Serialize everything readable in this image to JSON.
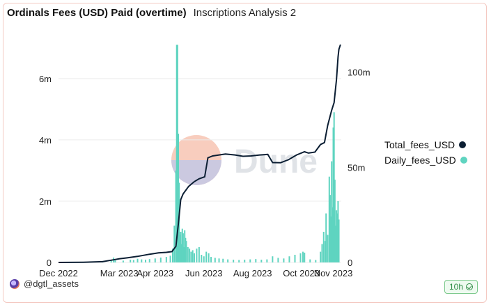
{
  "header": {
    "title": "Ordinals Fees (USD) Paid (overtime)",
    "subtitle": "Inscriptions Analysis 2"
  },
  "watermark": "Dune",
  "footer": {
    "user": "@dgtl_assets",
    "refresh_badge": "10h",
    "avatar_icon": "user-avatar-icon",
    "badge_icon": "check-circle-icon"
  },
  "colors": {
    "total_line": "#0b1e33",
    "daily_bars": "#5fd4c0",
    "watermark_orange": "#f6bca8",
    "watermark_blue": "#c3c8e6"
  },
  "chart_data": {
    "type": "bar+line",
    "x_axis": {
      "type": "date",
      "range": [
        "2022-12-01",
        "2023-11-20"
      ],
      "tick_labels": [
        "Dec 2022",
        "Mar 2023",
        "Apr 2023",
        "Jun 2023",
        "Aug 2023",
        "Oct 2023",
        "Nov 2023"
      ],
      "tick_dates": [
        "2022-12-01",
        "2023-02-15",
        "2023-04-01",
        "2023-06-01",
        "2023-08-01",
        "2023-10-01",
        "2023-11-10"
      ]
    },
    "y_left": {
      "range": [
        0,
        7200000
      ],
      "ticks": [
        0,
        2000000,
        4000000,
        6000000
      ],
      "tick_labels": [
        "0",
        "2m",
        "4m",
        "6m"
      ],
      "series": "Daily_fees_USD"
    },
    "y_right": {
      "range": [
        0,
        116000000
      ],
      "ticks": [
        0,
        50000000,
        100000000
      ],
      "tick_labels": [
        "0",
        "50m",
        "100m"
      ],
      "series": "Total_fees_USD"
    },
    "legend": {
      "placement": "right",
      "entries": [
        "Total_fees_USD",
        "Daily_fees_USD"
      ]
    },
    "grid": "horizontal",
    "series": [
      {
        "name": "Total_fees_USD",
        "kind": "line",
        "axis": "right",
        "points": [
          [
            "2022-12-01",
            0
          ],
          [
            "2023-01-01",
            100000
          ],
          [
            "2023-01-25",
            400000
          ],
          [
            "2023-02-08",
            1400000
          ],
          [
            "2023-02-15",
            1900000
          ],
          [
            "2023-02-25",
            2400000
          ],
          [
            "2023-03-10",
            3200000
          ],
          [
            "2023-03-25",
            4300000
          ],
          [
            "2023-04-05",
            5000000
          ],
          [
            "2023-04-15",
            5300000
          ],
          [
            "2023-04-22",
            5700000
          ],
          [
            "2023-04-27",
            8500000
          ],
          [
            "2023-04-30",
            20000000
          ],
          [
            "2023-05-03",
            33000000
          ],
          [
            "2023-05-06",
            36000000
          ],
          [
            "2023-05-13",
            40000000
          ],
          [
            "2023-05-20",
            42500000
          ],
          [
            "2023-05-26",
            44000000
          ],
          [
            "2023-06-02",
            45000000
          ],
          [
            "2023-06-06",
            55000000
          ],
          [
            "2023-06-12",
            56000000
          ],
          [
            "2023-06-20",
            56500000
          ],
          [
            "2023-06-28",
            57000000
          ],
          [
            "2023-07-10",
            56500000
          ],
          [
            "2023-07-20",
            55800000
          ],
          [
            "2023-07-30",
            56000000
          ],
          [
            "2023-08-10",
            56500000
          ],
          [
            "2023-08-20",
            56800000
          ],
          [
            "2023-08-26",
            52500000
          ],
          [
            "2023-09-05",
            52400000
          ],
          [
            "2023-09-15",
            54000000
          ],
          [
            "2023-09-25",
            56500000
          ],
          [
            "2023-10-05",
            58200000
          ],
          [
            "2023-10-10",
            57500000
          ],
          [
            "2023-10-18",
            58000000
          ],
          [
            "2023-10-25",
            62000000
          ],
          [
            "2023-10-30",
            63000000
          ],
          [
            "2023-11-03",
            72000000
          ],
          [
            "2023-11-08",
            80000000
          ],
          [
            "2023-11-11",
            84000000
          ],
          [
            "2023-11-14",
            96000000
          ],
          [
            "2023-11-16",
            108000000
          ],
          [
            "2023-11-17",
            112000000
          ],
          [
            "2023-11-19",
            114500000
          ]
        ]
      },
      {
        "name": "Daily_fees_USD",
        "kind": "bar",
        "axis": "left",
        "points": [
          [
            "2023-01-25",
            30000
          ],
          [
            "2023-02-05",
            60000
          ],
          [
            "2023-02-08",
            160000
          ],
          [
            "2023-02-10",
            70000
          ],
          [
            "2023-02-20",
            60000
          ],
          [
            "2023-03-01",
            90000
          ],
          [
            "2023-03-05",
            80000
          ],
          [
            "2023-03-10",
            120000
          ],
          [
            "2023-03-15",
            100000
          ],
          [
            "2023-03-20",
            90000
          ],
          [
            "2023-03-25",
            110000
          ],
          [
            "2023-04-01",
            130000
          ],
          [
            "2023-04-08",
            160000
          ],
          [
            "2023-04-15",
            180000
          ],
          [
            "2023-04-20",
            220000
          ],
          [
            "2023-04-23",
            450000
          ],
          [
            "2023-04-25",
            1200000
          ],
          [
            "2023-04-27",
            3000000
          ],
          [
            "2023-04-28",
            7100000
          ],
          [
            "2023-04-29",
            7100000
          ],
          [
            "2023-04-30",
            4200000
          ],
          [
            "2023-05-01",
            2600000
          ],
          [
            "2023-05-02",
            900000
          ],
          [
            "2023-05-03",
            1000000
          ],
          [
            "2023-05-04",
            600000
          ],
          [
            "2023-05-05",
            1100000
          ],
          [
            "2023-05-06",
            950000
          ],
          [
            "2023-05-07",
            500000
          ],
          [
            "2023-05-08",
            1050000
          ],
          [
            "2023-05-09",
            800000
          ],
          [
            "2023-05-10",
            700000
          ],
          [
            "2023-05-12",
            500000
          ],
          [
            "2023-05-14",
            450000
          ],
          [
            "2023-05-16",
            350000
          ],
          [
            "2023-05-18",
            400000
          ],
          [
            "2023-05-20",
            300000
          ],
          [
            "2023-05-23",
            450000
          ],
          [
            "2023-05-26",
            500000
          ],
          [
            "2023-05-29",
            250000
          ],
          [
            "2023-06-01",
            200000
          ],
          [
            "2023-06-04",
            350000
          ],
          [
            "2023-06-07",
            300000
          ],
          [
            "2023-06-10",
            180000
          ],
          [
            "2023-06-15",
            150000
          ],
          [
            "2023-06-20",
            130000
          ],
          [
            "2023-06-25",
            120000
          ],
          [
            "2023-07-01",
            100000
          ],
          [
            "2023-07-08",
            90000
          ],
          [
            "2023-07-15",
            80000
          ],
          [
            "2023-07-22",
            90000
          ],
          [
            "2023-07-29",
            100000
          ],
          [
            "2023-08-05",
            110000
          ],
          [
            "2023-08-12",
            90000
          ],
          [
            "2023-08-19",
            100000
          ],
          [
            "2023-08-26",
            200000
          ],
          [
            "2023-09-02",
            150000
          ],
          [
            "2023-09-09",
            130000
          ],
          [
            "2023-09-16",
            200000
          ],
          [
            "2023-09-23",
            250000
          ],
          [
            "2023-09-30",
            300000
          ],
          [
            "2023-10-03",
            350000
          ],
          [
            "2023-10-05",
            320000
          ],
          [
            "2023-10-12",
            100000
          ],
          [
            "2023-10-19",
            80000
          ],
          [
            "2023-10-25",
            350000
          ],
          [
            "2023-10-27",
            600000
          ],
          [
            "2023-10-29",
            1000000
          ],
          [
            "2023-10-31",
            700000
          ],
          [
            "2023-11-01",
            1600000
          ],
          [
            "2023-11-03",
            900000
          ],
          [
            "2023-11-05",
            2800000
          ],
          [
            "2023-11-06",
            2200000
          ],
          [
            "2023-11-07",
            1500000
          ],
          [
            "2023-11-08",
            3300000
          ],
          [
            "2023-11-09",
            1800000
          ],
          [
            "2023-11-10",
            4400000
          ],
          [
            "2023-11-11",
            4900000
          ],
          [
            "2023-11-12",
            2700000
          ],
          [
            "2023-11-13",
            1200000
          ],
          [
            "2023-11-14",
            1700000
          ],
          [
            "2023-11-15",
            1600000
          ],
          [
            "2023-11-16",
            2000000
          ],
          [
            "2023-11-17",
            1400000
          ]
        ]
      }
    ]
  }
}
